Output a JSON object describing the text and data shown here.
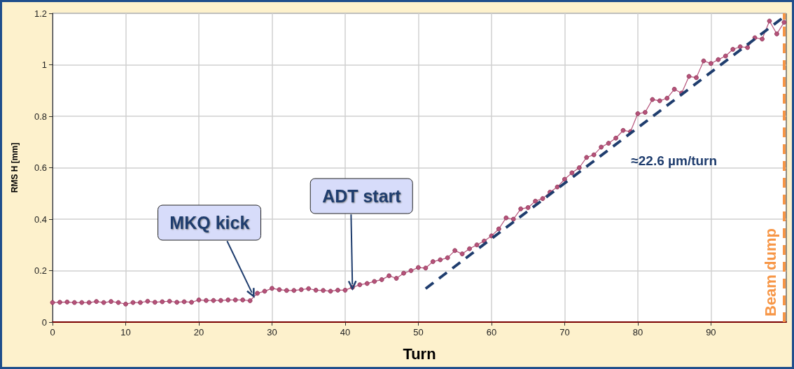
{
  "chart_data": {
    "type": "line",
    "xlabel": "Turn",
    "ylabel": "RMS H [mm]",
    "x": [
      0,
      1,
      2,
      3,
      4,
      5,
      6,
      7,
      8,
      9,
      10,
      11,
      12,
      13,
      14,
      15,
      16,
      17,
      18,
      19,
      20,
      21,
      22,
      23,
      24,
      25,
      26,
      27,
      28,
      29,
      30,
      31,
      32,
      33,
      34,
      35,
      36,
      37,
      38,
      39,
      40,
      41,
      42,
      43,
      44,
      45,
      46,
      47,
      48,
      49,
      50,
      51,
      52,
      53,
      54,
      55,
      56,
      57,
      58,
      59,
      60,
      61,
      62,
      63,
      64,
      65,
      66,
      67,
      68,
      69,
      70,
      71,
      72,
      73,
      74,
      75,
      76,
      77,
      78,
      79,
      80,
      81,
      82,
      83,
      84,
      85,
      86,
      87,
      88,
      89,
      90,
      91,
      92,
      93,
      94,
      95,
      96,
      97,
      98,
      99,
      100
    ],
    "series": [
      {
        "color": "#b5527a",
        "marker": "circle",
        "line_style": "solid",
        "values": [
          0.076,
          0.077,
          0.078,
          0.076,
          0.076,
          0.076,
          0.08,
          0.076,
          0.08,
          0.076,
          0.07,
          0.076,
          0.076,
          0.081,
          0.077,
          0.079,
          0.081,
          0.077,
          0.079,
          0.077,
          0.086,
          0.084,
          0.084,
          0.084,
          0.086,
          0.086,
          0.086,
          0.083,
          0.112,
          0.12,
          0.131,
          0.126,
          0.123,
          0.123,
          0.126,
          0.13,
          0.124,
          0.123,
          0.12,
          0.124,
          0.124,
          0.135,
          0.145,
          0.15,
          0.158,
          0.165,
          0.18,
          0.17,
          0.19,
          0.2,
          0.212,
          0.21,
          0.235,
          0.242,
          0.25,
          0.278,
          0.265,
          0.285,
          0.3,
          0.315,
          0.335,
          0.362,
          0.405,
          0.4,
          0.44,
          0.445,
          0.47,
          0.48,
          0.505,
          0.525,
          0.555,
          0.58,
          0.6,
          0.64,
          0.65,
          0.68,
          0.695,
          0.715,
          0.745,
          0.74,
          0.81,
          0.815,
          0.865,
          0.86,
          0.87,
          0.905,
          0.89,
          0.955,
          0.95,
          1.015,
          1.005,
          1.02,
          1.034,
          1.06,
          1.07,
          1.067,
          1.105,
          1.1,
          1.17,
          1.12,
          1.165
        ]
      },
      {
        "name": "≈22.6 µm/turn",
        "color": "#1f3d6e",
        "marker": "none",
        "line_style": "dashed",
        "x": [
          51,
          99.7
        ],
        "values": [
          0.13,
          1.18
        ]
      }
    ],
    "xlim": [
      0,
      100.3
    ],
    "xticks": [
      0,
      10,
      20,
      30,
      40,
      50,
      60,
      70,
      80,
      90
    ],
    "ylim": [
      0,
      1.2
    ],
    "yticks": [
      0,
      0.2,
      0.4,
      0.6,
      0.8,
      1,
      1.2
    ],
    "grid": true,
    "legend": false,
    "ref_lines": [
      {
        "axis": "x",
        "value": 100,
        "label": "Beam dump",
        "color": "#f79646",
        "line_style": "dashed"
      }
    ],
    "annotations": [
      {
        "text": "MKQ kick",
        "x": 27.5,
        "y": 0.1
      },
      {
        "text": "ADT start",
        "x": 41,
        "y": 0.13
      }
    ]
  }
}
